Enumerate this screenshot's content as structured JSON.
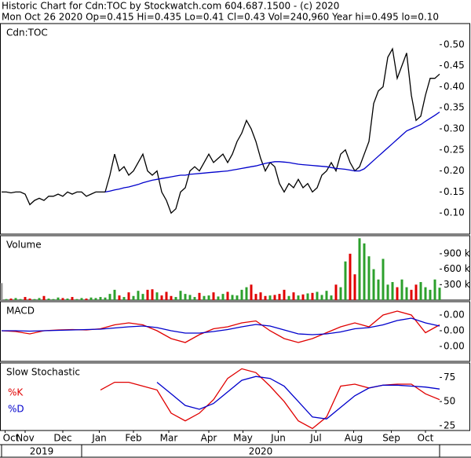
{
  "header": {
    "line1": "Historic Chart for Cdn:TOC by Stockwatch.com 604.687.1500 - (c) 2020",
    "line2": "Mon Oct 26 2020  Op=0.415  Hi=0.435  Lo=0.41  Cl=0.43  Vol=240,960  Year hi=0.495  lo=0.10"
  },
  "chart_data": [
    {
      "type": "line",
      "title": "Cdn:TOC",
      "x": [
        0,
        4,
        8,
        12,
        16,
        20,
        24,
        28,
        32,
        36,
        40,
        44,
        48,
        52,
        56,
        60,
        64,
        68,
        72,
        76,
        80,
        84,
        88,
        92,
        96,
        100,
        104,
        108,
        112,
        116,
        120,
        124,
        128,
        132,
        136,
        140,
        144,
        148,
        152,
        156,
        160,
        164,
        168,
        172,
        176,
        180,
        184,
        188,
        192,
        196,
        200,
        204,
        208,
        212,
        216,
        220,
        224,
        228,
        232,
        236,
        240,
        244,
        248,
        252,
        256,
        260,
        264,
        268,
        272,
        276,
        280,
        284,
        288,
        292,
        296,
        300,
        304,
        308,
        312,
        316,
        320,
        324,
        328,
        332,
        336,
        340,
        344,
        348,
        352,
        356,
        360,
        364,
        368,
        372
      ],
      "xlim": [
        0,
        372
      ],
      "ylim": [
        0.05,
        0.55
      ],
      "yticks": [
        {
          "value": 0.1,
          "label": "0.10"
        },
        0.15,
        {
          "value": 0.2,
          "label": "0.20"
        },
        0.25,
        {
          "value": 0.3,
          "label": "0.30"
        },
        0.35,
        {
          "value": 0.4,
          "label": "0.40"
        },
        0.45,
        {
          "value": 0.5,
          "label": "0.50"
        }
      ],
      "series": [
        {
          "color": "#000000",
          "values": [
            0.15,
            0.15,
            0.148,
            0.15,
            0.15,
            0.145,
            0.12,
            0.13,
            0.135,
            0.13,
            0.14,
            0.14,
            0.145,
            0.14,
            0.15,
            0.145,
            0.15,
            0.15,
            0.14,
            0.145,
            0.15,
            0.15,
            0.15,
            0.19,
            0.24,
            0.2,
            0.21,
            0.19,
            0.2,
            0.22,
            0.24,
            0.2,
            0.19,
            0.2,
            0.15,
            0.13,
            0.1,
            0.11,
            0.15,
            0.16,
            0.2,
            0.21,
            0.2,
            0.22,
            0.24,
            0.22,
            0.23,
            0.24,
            0.22,
            0.24,
            0.27,
            0.29,
            0.32,
            0.3,
            0.27,
            0.23,
            0.2,
            0.22,
            0.21,
            0.17,
            0.15,
            0.17,
            0.16,
            0.18,
            0.16,
            0.17,
            0.15,
            0.16,
            0.19,
            0.2,
            0.22,
            0.2,
            0.24,
            0.25,
            0.22,
            0.2,
            0.21,
            0.24,
            0.27,
            0.36,
            0.39,
            0.4,
            0.47,
            0.49,
            0.42,
            0.45,
            0.48,
            0.38,
            0.32,
            0.33,
            0.38,
            0.42,
            0.42,
            0.43
          ]
        },
        {
          "color": "#0000cc",
          "values": [
            null,
            null,
            null,
            null,
            null,
            null,
            null,
            null,
            null,
            null,
            null,
            null,
            null,
            null,
            null,
            null,
            null,
            null,
            null,
            null,
            null,
            null,
            0.15,
            0.152,
            0.155,
            0.157,
            0.16,
            0.162,
            0.165,
            0.168,
            0.172,
            0.175,
            0.178,
            0.18,
            0.182,
            0.184,
            0.186,
            0.188,
            0.19,
            0.19,
            0.192,
            0.193,
            0.194,
            0.195,
            0.196,
            0.197,
            0.198,
            0.199,
            0.2,
            0.202,
            0.204,
            0.206,
            0.208,
            0.21,
            0.212,
            0.215,
            0.218,
            0.22,
            0.222,
            0.222,
            0.221,
            0.22,
            0.218,
            0.216,
            0.215,
            0.214,
            0.213,
            0.212,
            0.211,
            0.21,
            0.208,
            0.206,
            0.205,
            0.204,
            0.202,
            0.2,
            0.2,
            0.205,
            0.215,
            0.225,
            0.235,
            0.245,
            0.255,
            0.265,
            0.275,
            0.285,
            0.295,
            0.3,
            0.305,
            0.31,
            0.318,
            0.325,
            0.332,
            0.34
          ]
        }
      ]
    },
    {
      "type": "bar",
      "title": "Volume",
      "x": [
        0,
        4,
        8,
        12,
        16,
        20,
        24,
        28,
        32,
        36,
        40,
        44,
        48,
        52,
        56,
        60,
        64,
        68,
        72,
        76,
        80,
        84,
        88,
        92,
        96,
        100,
        104,
        108,
        112,
        116,
        120,
        124,
        128,
        132,
        136,
        140,
        144,
        148,
        152,
        156,
        160,
        164,
        168,
        172,
        176,
        180,
        184,
        188,
        192,
        196,
        200,
        204,
        208,
        212,
        216,
        220,
        224,
        228,
        232,
        236,
        240,
        244,
        248,
        252,
        256,
        260,
        264,
        268,
        272,
        276,
        280,
        284,
        288,
        292,
        296,
        300,
        304,
        308,
        312,
        316,
        320,
        324,
        328,
        332,
        336,
        340,
        344,
        348,
        352,
        356,
        360,
        364,
        368,
        372
      ],
      "xlim": [
        0,
        372
      ],
      "ylim": [
        0,
        1250000
      ],
      "yticks": [
        {
          "value": 300000,
          "label": "300 k"
        },
        {
          "value": 600000,
          "label": "600 k"
        },
        {
          "value": 900000,
          "label": "900 k"
        }
      ],
      "up_color": "#2ca02c",
      "down_color": "#e00000",
      "flat_color": "#999999",
      "values": [
        330000,
        20000,
        30000,
        40000,
        20000,
        60000,
        30000,
        20000,
        40000,
        80000,
        30000,
        20000,
        50000,
        40000,
        30000,
        60000,
        20000,
        40000,
        30000,
        50000,
        40000,
        60000,
        50000,
        120000,
        200000,
        90000,
        60000,
        150000,
        80000,
        180000,
        120000,
        200000,
        210000,
        150000,
        90000,
        160000,
        80000,
        60000,
        180000,
        120000,
        100000,
        60000,
        140000,
        80000,
        90000,
        150000,
        70000,
        120000,
        160000,
        100000,
        90000,
        200000,
        250000,
        300000,
        120000,
        150000,
        80000,
        90000,
        100000,
        120000,
        200000,
        80000,
        150000,
        90000,
        110000,
        130000,
        140000,
        160000,
        100000,
        180000,
        90000,
        300000,
        250000,
        750000,
        900000,
        500000,
        1200000,
        1100000,
        850000,
        600000,
        400000,
        800000,
        300000,
        350000,
        250000,
        400000,
        250000,
        200000,
        300000,
        350000,
        250000,
        200000,
        400000,
        240960
      ]
    },
    {
      "type": "line",
      "title": "MACD",
      "x": [
        0,
        12,
        24,
        36,
        48,
        60,
        72,
        84,
        96,
        108,
        120,
        132,
        144,
        156,
        168,
        180,
        192,
        204,
        216,
        228,
        240,
        252,
        264,
        276,
        288,
        300,
        312,
        324,
        336,
        348,
        360,
        372
      ],
      "xlim": [
        0,
        372
      ],
      "ylim": [
        -0.0078,
        0.0074
      ],
      "yticks": [
        {
          "value": -0.004,
          "label": "0.00"
        },
        {
          "value": 0,
          "label": "0.00"
        },
        {
          "value": 0.004,
          "label": "0.00"
        }
      ],
      "series": [
        {
          "color": "#e00000",
          "values": [
            0,
            -0.0002,
            -0.0008,
            0,
            0.0002,
            0.0003,
            0.0002,
            0.0005,
            0.0015,
            0.002,
            0.0015,
            0,
            -0.002,
            -0.003,
            -0.001,
            0.0005,
            0.001,
            0.002,
            0.0025,
            0,
            -0.002,
            -0.003,
            -0.002,
            -0.0005,
            0.001,
            0.002,
            0.001,
            0.004,
            0.005,
            0.004,
            -0.0005,
            0.0015
          ]
        },
        {
          "color": "#0000cc",
          "values": [
            0,
            0,
            -0.0001,
            0,
            0.0001,
            0.0002,
            0.0003,
            0.0004,
            0.0007,
            0.001,
            0.0012,
            0.0008,
            0,
            -0.0006,
            -0.0006,
            -0.0002,
            0.0003,
            0.001,
            0.0016,
            0.0012,
            0.0002,
            -0.0008,
            -0.001,
            -0.0008,
            -0.0003,
            0.0005,
            0.0008,
            0.0015,
            0.0026,
            0.0032,
            0.002,
            0.0012
          ]
        }
      ]
    },
    {
      "type": "line",
      "title": "Slow Stochastic",
      "x": [
        0,
        12,
        24,
        36,
        48,
        60,
        72,
        84,
        96,
        108,
        120,
        132,
        144,
        156,
        168,
        180,
        192,
        204,
        216,
        228,
        240,
        252,
        264,
        276,
        288,
        300,
        312,
        324,
        336,
        348,
        360,
        372
      ],
      "xlim": [
        0,
        372
      ],
      "ylim": [
        20,
        90
      ],
      "yticks": [
        25,
        50,
        75
      ],
      "legend": true,
      "series": [
        {
          "name": "%K",
          "color": "#e00000",
          "values": [
            null,
            null,
            null,
            null,
            null,
            null,
            null,
            62,
            70,
            70,
            66,
            62,
            38,
            30,
            38,
            52,
            74,
            84,
            80,
            66,
            50,
            30,
            22,
            34,
            66,
            68,
            64,
            67,
            68,
            68,
            58,
            52
          ]
        },
        {
          "name": "%D",
          "color": "#0000cc",
          "values": [
            null,
            null,
            null,
            null,
            null,
            null,
            null,
            null,
            null,
            null,
            null,
            70,
            58,
            46,
            42,
            48,
            60,
            72,
            76,
            74,
            66,
            50,
            34,
            32,
            44,
            56,
            64,
            67,
            67,
            66,
            65,
            63
          ]
        }
      ],
      "xticks": [
        {
          "value": 3,
          "label": "Oct"
        },
        {
          "value": 20,
          "label": "Nov"
        },
        {
          "value": 52,
          "label": "Dec"
        },
        {
          "value": 83,
          "label": "Jan"
        },
        {
          "value": 112,
          "label": "Feb"
        },
        {
          "value": 142,
          "label": "Mar"
        },
        {
          "value": 176,
          "label": "Apr"
        },
        {
          "value": 205,
          "label": "May"
        },
        {
          "value": 235,
          "label": "Jun"
        },
        {
          "value": 267,
          "label": "Jul"
        },
        {
          "value": 299,
          "label": "Aug"
        },
        {
          "value": 331,
          "label": "Sep"
        },
        {
          "value": 360,
          "label": "Oct"
        }
      ],
      "x_groups": [
        {
          "label": "2019",
          "start": 0,
          "end": 68
        },
        {
          "label": "2020",
          "start": 68,
          "end": 372
        }
      ]
    }
  ]
}
